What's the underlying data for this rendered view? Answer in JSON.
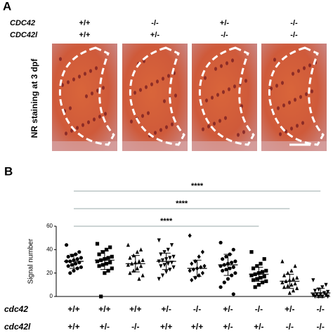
{
  "panel_a": {
    "label": "A",
    "ylabel": "NR staining at 3 dpf",
    "genes": [
      {
        "name": "CDC42",
        "genotypes": [
          "+/+",
          "-/-",
          "+/-",
          "-/-"
        ]
      },
      {
        "name": "CDC42l",
        "genotypes": [
          "+/+",
          "+/-",
          "-/-",
          "-/-"
        ]
      }
    ]
  },
  "chart_data": {
    "type": "dot",
    "panel_label": "B",
    "ylabel": "Signal number",
    "ylim": [
      0,
      60
    ],
    "yticks": [
      0,
      20,
      40,
      60
    ],
    "genotypes": [
      {
        "label": "cdc42",
        "values": [
          "+/+",
          "+/+",
          "+/+",
          "+/-",
          "-/-",
          "+/-",
          "-/-",
          "+/-",
          "-/-"
        ]
      },
      {
        "label": "cdc42l",
        "values": [
          "+/+",
          "+/-",
          "-/-",
          "+/+",
          "+/+",
          "+/-",
          "+/-",
          "-/-",
          "-/-"
        ]
      }
    ],
    "groups": [
      {
        "marker": "circle",
        "mean": 30,
        "sd": 6,
        "values": [
          44,
          38,
          36,
          35,
          34,
          33,
          32,
          31,
          30,
          30,
          29,
          28,
          27,
          26,
          25,
          24,
          22,
          20
        ]
      },
      {
        "marker": "square",
        "mean": 31,
        "sd": 8,
        "values": [
          45,
          42,
          40,
          38,
          36,
          34,
          33,
          32,
          31,
          30,
          29,
          28,
          27,
          26,
          24,
          22,
          20,
          0
        ]
      },
      {
        "marker": "triangle",
        "mean": 28,
        "sd": 7,
        "values": [
          44,
          40,
          38,
          35,
          33,
          31,
          30,
          29,
          28,
          27,
          26,
          24,
          22,
          20,
          18,
          15
        ]
      },
      {
        "marker": "triangle-down",
        "mean": 30,
        "sd": 7,
        "values": [
          48,
          44,
          40,
          38,
          36,
          34,
          33,
          32,
          31,
          30,
          29,
          28,
          27,
          26,
          25,
          23,
          21,
          18,
          15
        ]
      },
      {
        "marker": "diamond",
        "mean": 24,
        "sd": 7,
        "values": [
          52,
          38,
          34,
          30,
          28,
          26,
          25,
          24,
          23,
          22,
          20,
          18,
          16,
          14
        ]
      },
      {
        "marker": "circle",
        "mean": 27,
        "sd": 9,
        "values": [
          46,
          40,
          36,
          34,
          32,
          30,
          29,
          28,
          27,
          26,
          25,
          24,
          23,
          22,
          20,
          18,
          15,
          12,
          8,
          2
        ]
      },
      {
        "marker": "square",
        "mean": 19,
        "sd": 6,
        "values": [
          38,
          32,
          28,
          26,
          24,
          22,
          21,
          20,
          19,
          18,
          17,
          16,
          15,
          14,
          13,
          12,
          10,
          8
        ]
      },
      {
        "marker": "triangle",
        "mean": 13,
        "sd": 6,
        "values": [
          30,
          26,
          22,
          20,
          18,
          16,
          15,
          14,
          13,
          12,
          11,
          10,
          9,
          8,
          7,
          5,
          3
        ]
      },
      {
        "marker": "triangle-down",
        "mean": 3,
        "sd": 4,
        "values": [
          14,
          10,
          8,
          6,
          5,
          4,
          3,
          2,
          2,
          1,
          1,
          0,
          0,
          0,
          0
        ]
      }
    ],
    "annotations": [
      {
        "from": 0,
        "to": 6,
        "y": 60,
        "label": "****"
      },
      {
        "from": 0,
        "to": 7,
        "y": 75,
        "label": "****"
      },
      {
        "from": 0,
        "to": 8,
        "y": 90,
        "label": "****"
      }
    ]
  }
}
